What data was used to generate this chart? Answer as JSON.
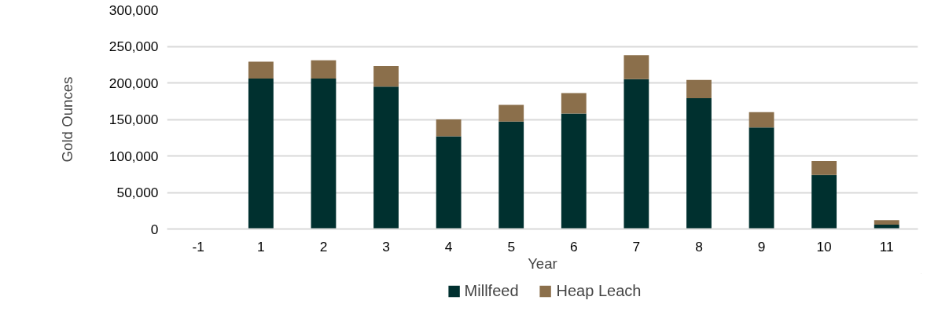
{
  "chart_data": {
    "type": "bar",
    "stacked": true,
    "xlabel": "Year",
    "ylabel": "Gold Ounces",
    "categories": [
      "-1",
      "1",
      "2",
      "3",
      "4",
      "5",
      "6",
      "7",
      "8",
      "9",
      "10",
      "11"
    ],
    "series": [
      {
        "name": "Millfeed",
        "color": "#00302f",
        "values": [
          0,
          206000,
          206000,
          195000,
          127000,
          147000,
          158000,
          205000,
          179000,
          139000,
          74000,
          6000
        ]
      },
      {
        "name": "Heap Leach",
        "color": "#8b6f4b",
        "values": [
          0,
          23000,
          25000,
          28000,
          23000,
          23000,
          28000,
          33000,
          25000,
          21000,
          19000,
          6000
        ]
      }
    ],
    "ylim": [
      0,
      300000
    ],
    "yticks": [
      {
        "value": 0,
        "label": "0"
      },
      {
        "value": 50000,
        "label": "50,000"
      },
      {
        "value": 100000,
        "label": "100,000"
      },
      {
        "value": 150000,
        "label": "150,000"
      },
      {
        "value": 200000,
        "label": "200,000"
      },
      {
        "value": 250000,
        "label": "250,000"
      },
      {
        "value": 300000,
        "label": "300,000"
      }
    ],
    "grid": "y",
    "legend": "bottom"
  }
}
